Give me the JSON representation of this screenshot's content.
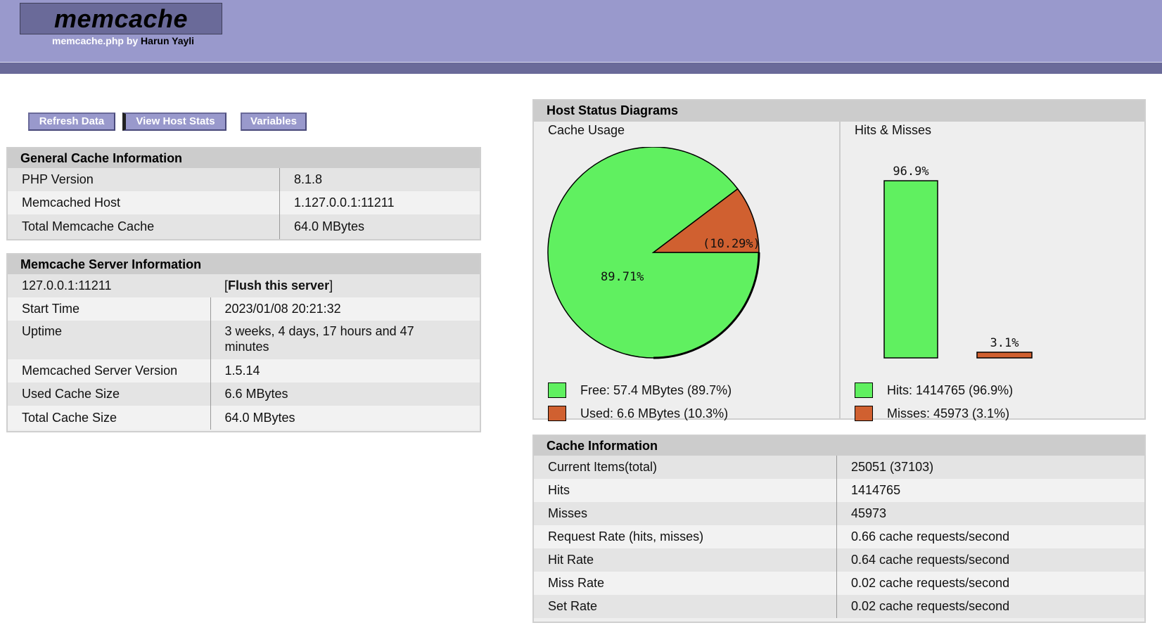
{
  "header": {
    "logo": "memcache",
    "subtitle_prefix": "memcache.php by",
    "subtitle_author": "Harun Yayli",
    "colors": {
      "band": "#9999cc",
      "line": "#6a6a99"
    }
  },
  "toolbar": {
    "refresh_label": "Refresh Data",
    "host_stats_label": "View Host Stats",
    "variables_label": "Variables",
    "active": "View Host Stats"
  },
  "general_cache": {
    "title": "General Cache Information",
    "rows": [
      {
        "key": "PHP Version",
        "value": "8.1.8"
      },
      {
        "key": "Memcached Host",
        "value": "1.127.0.0.1:11211"
      },
      {
        "key": "Total Memcache Cache",
        "value": "64.0 MBytes"
      }
    ]
  },
  "server_info": {
    "title": "Memcache Server Information",
    "server": "127.0.0.1:11211",
    "flush_open": "[",
    "flush_label": "Flush this server",
    "flush_close": "]",
    "rows": [
      {
        "key": "Start Time",
        "value": "2023/01/08 20:21:32"
      },
      {
        "key": "Uptime",
        "value": "3 weeks, 4 days, 17 hours and 47 minutes"
      },
      {
        "key": "Memcached Server Version",
        "value": "1.5.14"
      },
      {
        "key": "Used Cache Size",
        "value": "6.6 MBytes"
      },
      {
        "key": "Total Cache Size",
        "value": "64.0 MBytes"
      }
    ]
  },
  "diagrams": {
    "title": "Host Status Diagrams",
    "cache_usage_label": "Cache Usage",
    "hits_misses_label": "Hits & Misses",
    "legend": {
      "free": "Free: 57.4 MBytes (89.7%)",
      "used": "Used: 6.6 MBytes (10.3%)",
      "hits": "Hits: 1414765 (96.9%)",
      "misses": "Misses: 45973 (3.1%)"
    },
    "colors": {
      "green": "#60f060",
      "orange": "#d06030"
    }
  },
  "chart_data": [
    {
      "type": "pie",
      "title": "Cache Usage",
      "categories": [
        "Free",
        "Used"
      ],
      "values": [
        89.71,
        10.29
      ],
      "labels": [
        "89.71%",
        "(10.29%)"
      ]
    },
    {
      "type": "bar",
      "title": "Hits & Misses",
      "categories": [
        "Hits",
        "Misses"
      ],
      "values": [
        96.9,
        3.1
      ],
      "labels": [
        "96.9%",
        "3.1%"
      ],
      "ylim": [
        0,
        100
      ]
    }
  ],
  "cache_info": {
    "title": "Cache Information",
    "rows": [
      {
        "key": "Current Items(total)",
        "value": "25051 (37103)"
      },
      {
        "key": "Hits",
        "value": "1414765"
      },
      {
        "key": "Misses",
        "value": "45973"
      },
      {
        "key": "Request Rate (hits, misses)",
        "value": "0.66 cache requests/second"
      },
      {
        "key": "Hit Rate",
        "value": "0.64 cache requests/second"
      },
      {
        "key": "Miss Rate",
        "value": "0.02 cache requests/second"
      },
      {
        "key": "Set Rate",
        "value": "0.02 cache requests/second"
      }
    ]
  }
}
